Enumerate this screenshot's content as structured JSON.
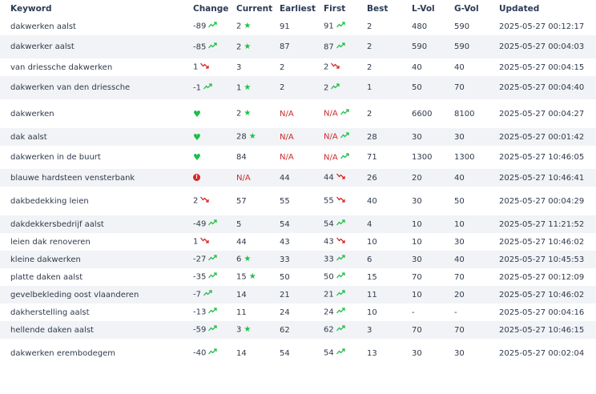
{
  "headers": {
    "keyword": "Keyword",
    "change": "Change",
    "current": "Current",
    "earliest": "Earliest",
    "first": "First",
    "best": "Best",
    "lvol": "L-Vol",
    "gvol": "G-Vol",
    "updated": "Updated"
  },
  "rows": [
    {
      "keyword": "dakwerken aalst",
      "change": "-89",
      "change_icon": "up",
      "current": "2",
      "current_icon": "star",
      "earliest": "91",
      "first": "91",
      "first_icon": "up",
      "best": "2",
      "lvol": "480",
      "gvol": "590",
      "updated": "2025-05-27 00:12:17"
    },
    {
      "keyword": "dakwerker aalst",
      "change": "-85",
      "change_icon": "up",
      "current": "2",
      "current_icon": "star",
      "earliest": "87",
      "first": "87",
      "first_icon": "up",
      "best": "2",
      "lvol": "590",
      "gvol": "590",
      "updated": "2025-05-27 00:04:03"
    },
    {
      "keyword": "van driessche dakwerken",
      "change": "1",
      "change_icon": "down",
      "current": "3",
      "current_icon": "",
      "earliest": "2",
      "first": "2",
      "first_icon": "down",
      "best": "2",
      "lvol": "40",
      "gvol": "40",
      "updated": "2025-05-27 00:04:15"
    },
    {
      "keyword": "dakwerken van den driessche",
      "change": "-1",
      "change_icon": "up",
      "current": "1",
      "current_icon": "star",
      "earliest": "2",
      "first": "2",
      "first_icon": "up",
      "best": "1",
      "lvol": "50",
      "gvol": "70",
      "updated": "2025-05-27 00:04:40"
    },
    {
      "keyword": "dakwerken",
      "change": "",
      "change_icon": "heart",
      "current": "2",
      "current_icon": "star",
      "earliest": "N/A",
      "first": "N/A",
      "first_icon": "up",
      "best": "2",
      "lvol": "6600",
      "gvol": "8100",
      "updated": "2025-05-27 00:04:27"
    },
    {
      "keyword": "dak aalst",
      "change": "",
      "change_icon": "heart",
      "current": "28",
      "current_icon": "star",
      "earliest": "N/A",
      "first": "N/A",
      "first_icon": "up",
      "best": "28",
      "lvol": "30",
      "gvol": "30",
      "updated": "2025-05-27 00:01:42"
    },
    {
      "keyword": "dakwerken in de buurt",
      "change": "",
      "change_icon": "heart",
      "current": "84",
      "current_icon": "",
      "earliest": "N/A",
      "first": "N/A",
      "first_icon": "up",
      "best": "71",
      "lvol": "1300",
      "gvol": "1300",
      "updated": "2025-05-27 10:46:05"
    },
    {
      "keyword": "blauwe hardsteen vensterbank",
      "change": "",
      "change_icon": "alert",
      "current": "N/A",
      "current_icon": "",
      "earliest": "44",
      "first": "44",
      "first_icon": "down",
      "best": "26",
      "lvol": "20",
      "gvol": "40",
      "updated": "2025-05-27 10:46:41"
    },
    {
      "keyword": "dakbedekking leien",
      "change": "2",
      "change_icon": "down",
      "current": "57",
      "current_icon": "",
      "earliest": "55",
      "first": "55",
      "first_icon": "down",
      "best": "40",
      "lvol": "30",
      "gvol": "50",
      "updated": "2025-05-27 00:04:29"
    },
    {
      "keyword": "dakdekkersbedrijf aalst",
      "change": "-49",
      "change_icon": "up",
      "current": "5",
      "current_icon": "",
      "earliest": "54",
      "first": "54",
      "first_icon": "up",
      "best": "4",
      "lvol": "10",
      "gvol": "10",
      "updated": "2025-05-27 11:21:52"
    },
    {
      "keyword": "leien dak renoveren",
      "change": "1",
      "change_icon": "down",
      "current": "44",
      "current_icon": "",
      "earliest": "43",
      "first": "43",
      "first_icon": "down",
      "best": "10",
      "lvol": "10",
      "gvol": "30",
      "updated": "2025-05-27 10:46:02"
    },
    {
      "keyword": "kleine dakwerken",
      "change": "-27",
      "change_icon": "up",
      "current": "6",
      "current_icon": "star",
      "earliest": "33",
      "first": "33",
      "first_icon": "up",
      "best": "6",
      "lvol": "30",
      "gvol": "40",
      "updated": "2025-05-27 10:45:53"
    },
    {
      "keyword": "platte daken aalst",
      "change": "-35",
      "change_icon": "up",
      "current": "15",
      "current_icon": "star",
      "earliest": "50",
      "first": "50",
      "first_icon": "up",
      "best": "15",
      "lvol": "70",
      "gvol": "70",
      "updated": "2025-05-27 00:12:09"
    },
    {
      "keyword": "gevelbekleding oost vlaanderen",
      "change": "-7",
      "change_icon": "up",
      "current": "14",
      "current_icon": "",
      "earliest": "21",
      "first": "21",
      "first_icon": "up",
      "best": "11",
      "lvol": "10",
      "gvol": "20",
      "updated": "2025-05-27 10:46:02"
    },
    {
      "keyword": "dakherstelling aalst",
      "change": "-13",
      "change_icon": "up",
      "current": "11",
      "current_icon": "",
      "earliest": "24",
      "first": "24",
      "first_icon": "up",
      "best": "10",
      "lvol": "-",
      "gvol": "-",
      "updated": "2025-05-27 00:04:16"
    },
    {
      "keyword": "hellende daken aalst",
      "change": "-59",
      "change_icon": "up",
      "current": "3",
      "current_icon": "star",
      "earliest": "62",
      "first": "62",
      "first_icon": "up",
      "best": "3",
      "lvol": "70",
      "gvol": "70",
      "updated": "2025-05-27 10:46:15"
    },
    {
      "keyword": "dakwerken erembodegem",
      "change": "-40",
      "change_icon": "up",
      "current": "14",
      "current_icon": "",
      "earliest": "54",
      "first": "54",
      "first_icon": "up",
      "best": "13",
      "lvol": "30",
      "gvol": "30",
      "updated": "2025-05-27 00:02:04"
    }
  ],
  "colors": {
    "up": "#1fbf4a",
    "down": "#d72626",
    "na": "#cc2b2b",
    "shade": "#f1f3f6"
  },
  "icons": {
    "up": "trend-up-icon",
    "down": "trend-down-icon",
    "star": "star-icon",
    "heart": "heart-icon",
    "alert": "alert-icon"
  }
}
